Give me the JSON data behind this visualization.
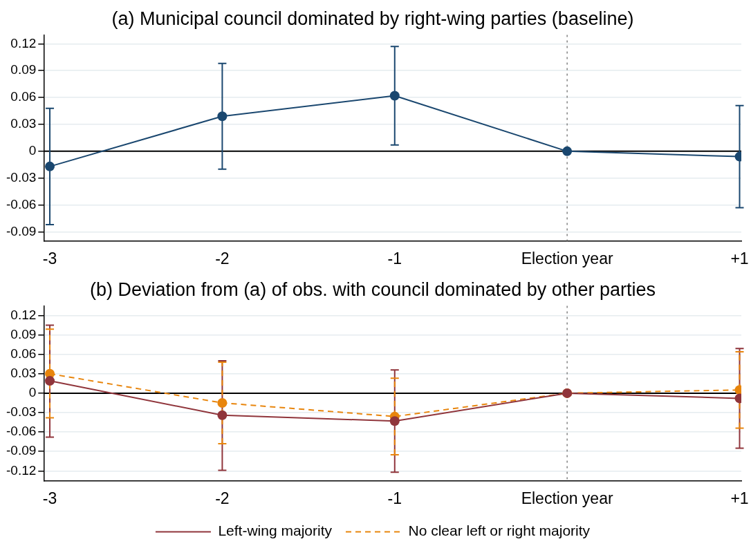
{
  "chart_data": [
    {
      "type": "line",
      "title": "(a) Municipal council dominated by right-wing parties (baseline)",
      "categories": [
        "-3",
        "-2",
        "-1",
        "Election year",
        "+1"
      ],
      "series": [
        {
          "color": "#1a476f",
          "values": [
            -0.017,
            0.039,
            0.062,
            0,
            -0.006
          ],
          "errors": [
            [
              -0.082,
              0.048
            ],
            [
              -0.02,
              0.098
            ],
            [
              0.007,
              0.117
            ],
            null,
            [
              -0.063,
              0.051
            ]
          ]
        }
      ],
      "ylim": [
        -0.1,
        0.13
      ],
      "yticks": [
        -0.09,
        -0.06,
        -0.03,
        0,
        0.03,
        0.06,
        0.09,
        0.12
      ],
      "grid": "y",
      "marker": "circle",
      "line_style": "solid",
      "legend": false,
      "ref_lines": [
        {
          "axis": "y",
          "value": 0,
          "color": "#000000",
          "line_style": "solid"
        },
        {
          "axis": "x",
          "value": "Election year",
          "color": "#808080",
          "line_style": "dotted"
        }
      ]
    },
    {
      "type": "line",
      "title": "(b) Deviation from (a) of obs. with council dominated by other parties",
      "categories": [
        "-3",
        "-2",
        "-1",
        "Election year",
        "+1"
      ],
      "series": [
        {
          "name": "Left-wing majority",
          "color": "#90353b",
          "line_style": "solid",
          "values": [
            0.019,
            -0.034,
            -0.043,
            0,
            -0.008
          ],
          "errors": [
            [
              -0.068,
              0.105
            ],
            [
              -0.119,
              0.05
            ],
            [
              -0.122,
              0.036
            ],
            null,
            [
              -0.085,
              0.069
            ]
          ]
        },
        {
          "name": "No clear left or right majority",
          "color": "#e8850c",
          "line_style": "dashed",
          "values": [
            0.03,
            -0.015,
            -0.036,
            0,
            0.005
          ],
          "errors": [
            [
              -0.038,
              0.099
            ],
            [
              -0.078,
              0.048
            ],
            [
              -0.095,
              0.023
            ],
            null,
            [
              -0.054,
              0.064
            ]
          ]
        }
      ],
      "ylim": [
        -0.135,
        0.135
      ],
      "yticks": [
        -0.12,
        -0.09,
        -0.06,
        -0.03,
        0,
        0.03,
        0.06,
        0.09,
        0.12
      ],
      "grid": "y",
      "marker": "circle",
      "legend": "bottom",
      "ref_lines": [
        {
          "axis": "y",
          "value": 0,
          "color": "#000000",
          "line_style": "solid"
        },
        {
          "axis": "x",
          "value": "Election year",
          "color": "#808080",
          "line_style": "dotted"
        }
      ]
    }
  ]
}
